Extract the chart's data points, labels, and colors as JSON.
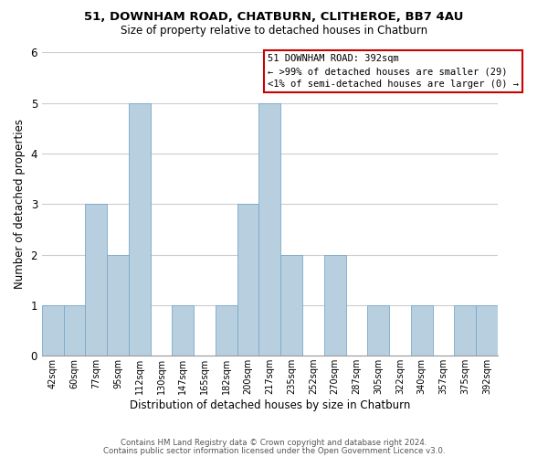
{
  "title_line1": "51, DOWNHAM ROAD, CHATBURN, CLITHEROE, BB7 4AU",
  "title_line2": "Size of property relative to detached houses in Chatburn",
  "xlabel": "Distribution of detached houses by size in Chatburn",
  "ylabel": "Number of detached properties",
  "bins": [
    "42sqm",
    "60sqm",
    "77sqm",
    "95sqm",
    "112sqm",
    "130sqm",
    "147sqm",
    "165sqm",
    "182sqm",
    "200sqm",
    "217sqm",
    "235sqm",
    "252sqm",
    "270sqm",
    "287sqm",
    "305sqm",
    "322sqm",
    "340sqm",
    "357sqm",
    "375sqm",
    "392sqm"
  ],
  "counts": [
    1,
    1,
    3,
    2,
    5,
    0,
    1,
    0,
    1,
    3,
    5,
    2,
    0,
    2,
    0,
    1,
    0,
    1,
    0,
    1,
    1
  ],
  "bar_color": "#b8cfe0",
  "bar_edge_color": "#7ba8c8",
  "legend_box_edge_color": "#cc0000",
  "legend_title": "51 DOWNHAM ROAD: 392sqm",
  "legend_line1": "← >99% of detached houses are smaller (29)",
  "legend_line2": "<1% of semi-detached houses are larger (0) →",
  "ylim": [
    0,
    6
  ],
  "yticks": [
    0,
    1,
    2,
    3,
    4,
    5,
    6
  ],
  "footer_line1": "Contains HM Land Registry data © Crown copyright and database right 2024.",
  "footer_line2": "Contains public sector information licensed under the Open Government Licence v3.0.",
  "background_color": "#ffffff",
  "grid_color": "#cccccc"
}
